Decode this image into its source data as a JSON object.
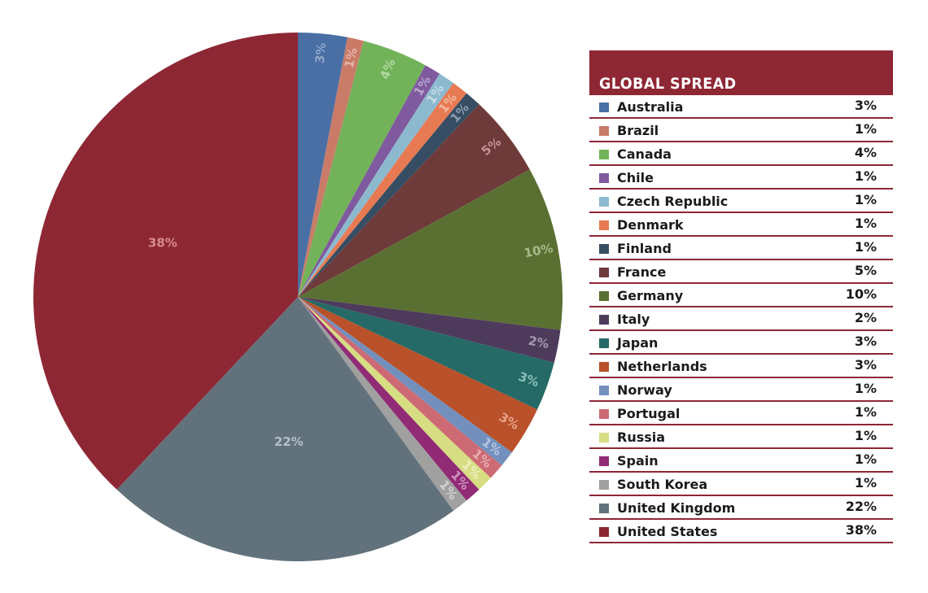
{
  "chart_data": {
    "type": "pie",
    "title": "GLOBAL SPREAD",
    "legend_position": "right",
    "slices": [
      {
        "name": "Australia",
        "value": 3,
        "label": "3%",
        "color": "#4a6fa5",
        "label_color": "#8ea6cc"
      },
      {
        "name": "Brazil",
        "value": 1,
        "label": "1%",
        "color": "#c97b68",
        "label_color": "#e6b4a8"
      },
      {
        "name": "Canada",
        "value": 4,
        "label": "4%",
        "color": "#72b35a",
        "label_color": "#b3d9a2"
      },
      {
        "name": "Chile",
        "value": 1,
        "label": "1%",
        "color": "#7f5a9e",
        "label_color": "#b9a3cf"
      },
      {
        "name": "Czech Republic",
        "value": 1,
        "label": "1%",
        "color": "#8db9cf",
        "label_color": "#c6dde8"
      },
      {
        "name": "Denmark",
        "value": 1,
        "label": "1%",
        "color": "#e77a52",
        "label_color": "#f4b9a1"
      },
      {
        "name": "Finland",
        "value": 1,
        "label": "1%",
        "color": "#364d63",
        "label_color": "#8c9db0"
      },
      {
        "name": "France",
        "value": 5,
        "label": "5%",
        "color": "#6e3a3a",
        "label_color": "#c49494"
      },
      {
        "name": "Germany",
        "value": 10,
        "label": "10%",
        "color": "#5a7032",
        "label_color": "#a9b98b"
      },
      {
        "name": "Italy",
        "value": 2,
        "label": "2%",
        "color": "#4e3b5c",
        "label_color": "#a897b5"
      },
      {
        "name": "Japan",
        "value": 3,
        "label": "3%",
        "color": "#256a66",
        "label_color": "#8cbfbb"
      },
      {
        "name": "Netherlands",
        "value": 3,
        "label": "3%",
        "color": "#b9512a",
        "label_color": "#e6a587"
      },
      {
        "name": "Norway",
        "value": 1,
        "label": "1%",
        "color": "#7390bd",
        "label_color": "#b8c7e0"
      },
      {
        "name": "Portugal",
        "value": 1,
        "label": "1%",
        "color": "#cd6a73",
        "label_color": "#e8b0b5"
      },
      {
        "name": "Russia",
        "value": 1,
        "label": "1%",
        "color": "#d7dd82",
        "label_color": "#eef0c3"
      },
      {
        "name": "Spain",
        "value": 1,
        "label": "1%",
        "color": "#922b76",
        "label_color": "#d193bf"
      },
      {
        "name": "South Korea",
        "value": 1,
        "label": "1%",
        "color": "#a0a0a0",
        "label_color": "#d2d2d2"
      },
      {
        "name": "United Kingdom",
        "value": 22,
        "label": "22%",
        "color": "#62727c",
        "label_color": "#b4c0c7"
      },
      {
        "name": "United States",
        "value": 38,
        "label": "38%",
        "color": "#8e2734",
        "label_color": "#d68b8b"
      }
    ]
  },
  "colors": {
    "header_bg": "#8e2734",
    "header_text": "#ffffff",
    "row_rule": "#8e2734",
    "legend_text": "#1b1b1b"
  }
}
